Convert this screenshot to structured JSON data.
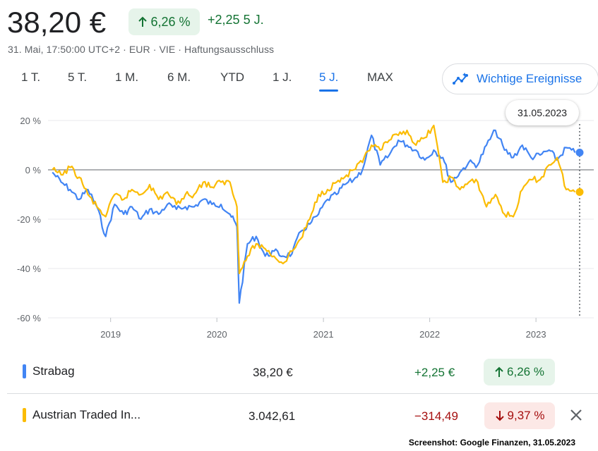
{
  "header": {
    "price": "38,20 €",
    "change_pct": "6,26 %",
    "change_abs": "+2,25",
    "change_period": "5 J.",
    "meta": "31. Mai, 17:50:00 UTC+2 · EUR · VIE · Haftungsausschluss"
  },
  "tabs": [
    "1 T.",
    "5 T.",
    "1 M.",
    "6 M.",
    "YTD",
    "1 J.",
    "5 J.",
    "MAX"
  ],
  "active_tab": "5 J.",
  "events_button": "Wichtige Ereignisse",
  "tooltip_date": "31.05.2023",
  "legend": [
    {
      "name": "Strabag",
      "price": "38,20 €",
      "change_abs": "+2,25 €",
      "change_pct": "6,26 %",
      "color": "#4285f4",
      "direction": "up"
    },
    {
      "name": "Austrian Traded In...",
      "price": "3.042,61",
      "change_abs": "−314,49",
      "change_pct": "9,37 %",
      "color": "#fbbc04",
      "direction": "down"
    }
  ],
  "credit": "Screenshot: Google Finanzen, 31.05.2023",
  "colors": {
    "positive": "#137333",
    "positive_bg": "#e6f4ea",
    "negative": "#a50e0e",
    "negative_bg": "#fce8e6",
    "accent": "#1a73e8"
  },
  "chart_data": {
    "type": "line",
    "x_ticks": [
      "2019",
      "2020",
      "2021",
      "2022",
      "2023"
    ],
    "y_ticks": [
      "20 %",
      "0 %",
      "-20 %",
      "-40 %",
      "-60 %"
    ],
    "ylim": [
      -60,
      20
    ],
    "x_range": [
      "2018-05-31",
      "2023-05-31"
    ],
    "series": [
      {
        "name": "Strabag",
        "color": "#4285f4",
        "x": [
          "2018-06",
          "2018-07",
          "2018-08",
          "2018-09",
          "2018-10",
          "2018-11",
          "2018-12",
          "2019-01",
          "2019-02",
          "2019-03",
          "2019-04",
          "2019-05",
          "2019-06",
          "2019-07",
          "2019-08",
          "2019-09",
          "2019-10",
          "2019-11",
          "2019-12",
          "2020-01",
          "2020-02",
          "2020-03-10",
          "2020-03-18",
          "2020-04",
          "2020-05",
          "2020-06",
          "2020-07",
          "2020-08",
          "2020-09",
          "2020-10",
          "2020-11",
          "2020-12",
          "2021-01",
          "2021-02",
          "2021-03",
          "2021-04",
          "2021-05",
          "2021-06",
          "2021-07",
          "2021-08",
          "2021-09",
          "2021-10",
          "2021-11",
          "2021-12",
          "2022-01",
          "2022-02",
          "2022-03",
          "2022-04",
          "2022-05",
          "2022-06",
          "2022-07",
          "2022-08",
          "2022-09",
          "2022-10",
          "2022-11",
          "2022-12",
          "2023-01",
          "2023-02",
          "2023-03",
          "2023-04",
          "2023-05"
        ],
        "y": [
          -1,
          -5,
          -8,
          -12,
          -8,
          -15,
          -27,
          -14,
          -18,
          -15,
          -20,
          -16,
          -18,
          -14,
          -16,
          -15,
          -15,
          -12,
          -14,
          -14,
          -18,
          -23,
          -54,
          -30,
          -27,
          -35,
          -33,
          -35,
          -34,
          -25,
          -22,
          -18,
          -12,
          -10,
          -6,
          -4,
          0,
          14,
          2,
          6,
          12,
          10,
          8,
          4,
          8,
          5,
          -5,
          -1,
          3,
          2,
          10,
          16,
          8,
          5,
          10,
          5,
          6,
          8,
          4,
          9,
          7
        ]
      },
      {
        "name": "Austrian Traded In...",
        "color": "#fbbc04",
        "x": [
          "2018-06",
          "2018-07",
          "2018-08",
          "2018-09",
          "2018-10",
          "2018-11",
          "2018-12",
          "2019-01",
          "2019-02",
          "2019-03",
          "2019-04",
          "2019-05",
          "2019-06",
          "2019-07",
          "2019-08",
          "2019-09",
          "2019-10",
          "2019-11",
          "2019-12",
          "2020-01",
          "2020-02",
          "2020-03-10",
          "2020-03-18",
          "2020-04",
          "2020-05",
          "2020-06",
          "2020-07",
          "2020-08",
          "2020-09",
          "2020-10",
          "2020-11",
          "2020-12",
          "2021-01",
          "2021-02",
          "2021-03",
          "2021-04",
          "2021-05",
          "2021-06",
          "2021-07",
          "2021-08",
          "2021-09",
          "2021-10",
          "2021-11",
          "2021-12",
          "2022-01",
          "2022-02",
          "2022-03",
          "2022-04",
          "2022-05",
          "2022-06",
          "2022-07",
          "2022-08",
          "2022-09",
          "2022-10",
          "2022-11",
          "2022-12",
          "2023-01",
          "2023-02",
          "2023-03",
          "2023-04",
          "2023-05"
        ],
        "y": [
          0,
          -2,
          1,
          -3,
          -10,
          -15,
          -19,
          -10,
          -12,
          -8,
          -10,
          -6,
          -12,
          -9,
          -14,
          -10,
          -10,
          -5,
          -7,
          -5,
          -5,
          -15,
          -42,
          -35,
          -30,
          -32,
          -35,
          -38,
          -33,
          -28,
          -20,
          -10,
          -8,
          -5,
          -3,
          0,
          3,
          10,
          8,
          12,
          14,
          16,
          10,
          13,
          18,
          -5,
          -3,
          -8,
          -5,
          -5,
          -15,
          -10,
          -18,
          -19,
          -8,
          -4,
          -4,
          2,
          5,
          -8,
          -9
        ]
      }
    ]
  }
}
